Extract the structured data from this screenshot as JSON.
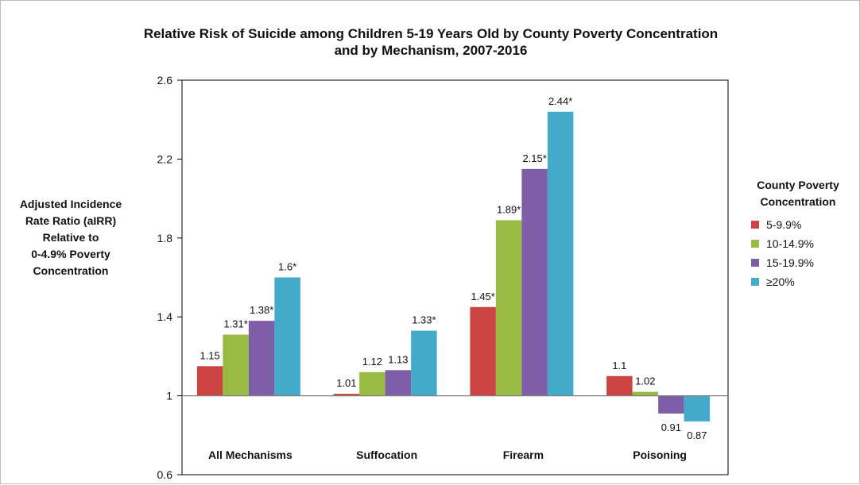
{
  "chart_data": {
    "type": "bar",
    "title": [
      "Relative Risk of Suicide among Children 5-19 Years Old by County Poverty Concentration",
      "and by Mechanism, 2007-2016"
    ],
    "ylabel": [
      "Adjusted Incidence",
      "Rate Ratio (aIRR)",
      "Relative to",
      "0-4.9% Poverty",
      "Concentration"
    ],
    "xlabel": "",
    "categories": [
      "All Mechanisms",
      "Suffocation",
      "Firearm",
      "Poisoning"
    ],
    "baseline": 1,
    "ylim": [
      0.6,
      2.6
    ],
    "yticks": [
      "0.6",
      "1",
      "1.4",
      "1.8",
      "2.2",
      "2.6"
    ],
    "grid": false,
    "legend_title": [
      "County Poverty",
      "Concentration"
    ],
    "legend_position": "right",
    "series": [
      {
        "name": "5-9.9%",
        "color": "#cc4444",
        "values": [
          1.15,
          1.01,
          1.45,
          1.1
        ],
        "labels": [
          "1.15",
          "1.01",
          "1.45*",
          "1.1"
        ]
      },
      {
        "name": "10-14.9%",
        "color": "#99bb44",
        "values": [
          1.31,
          1.12,
          1.89,
          1.02
        ],
        "labels": [
          "1.31*",
          "1.12",
          "1.89*",
          "1.02"
        ]
      },
      {
        "name": "15-19.9%",
        "color": "#7e5ea6",
        "values": [
          1.38,
          1.13,
          2.15,
          0.91
        ],
        "labels": [
          "1.38*",
          "1.13",
          "2.15*",
          "0.91"
        ]
      },
      {
        "name": "≥20%",
        "color": "#44aacc",
        "values": [
          1.6,
          1.33,
          2.44,
          0.87
        ],
        "labels": [
          "1.6*",
          "1.33*",
          "2.44*",
          "0.87"
        ]
      }
    ]
  }
}
